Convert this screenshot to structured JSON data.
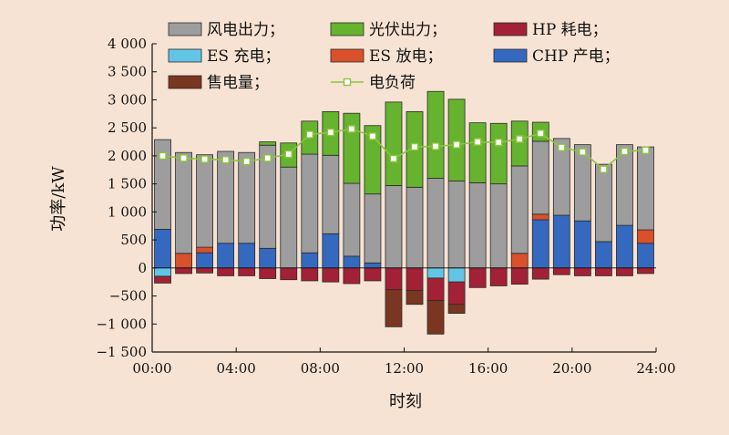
{
  "chart_data": {
    "type": "bar",
    "xlabel": "时刻",
    "ylabel": "功率/kW",
    "ylim": [
      -1500,
      4000
    ],
    "xlim": [
      0,
      24
    ],
    "yticks": [
      {
        "value": -1500,
        "label": "−1 500"
      },
      {
        "value": -1000,
        "label": "−1 000"
      },
      {
        "value": -500,
        "label": "−500"
      },
      {
        "value": 0,
        "label": "0"
      },
      {
        "value": 500,
        "label": "500"
      },
      {
        "value": 1000,
        "label": "1 000"
      },
      {
        "value": 1500,
        "label": "1 500"
      },
      {
        "value": 2000,
        "label": "2 000"
      },
      {
        "value": 2500,
        "label": "2 500"
      },
      {
        "value": 3000,
        "label": "3 000"
      },
      {
        "value": 3500,
        "label": "3 500"
      },
      {
        "value": 4000,
        "label": "4 000"
      }
    ],
    "xticks": [
      {
        "value": 0,
        "label": "00:00"
      },
      {
        "value": 4,
        "label": "04:00"
      },
      {
        "value": 8,
        "label": "08:00"
      },
      {
        "value": 12,
        "label": "12:00"
      },
      {
        "value": 16,
        "label": "16:00"
      },
      {
        "value": 20,
        "label": "20:00"
      },
      {
        "value": 24,
        "label": "24:00"
      }
    ],
    "grid": false,
    "legend_position": "top",
    "hours": [
      1,
      2,
      3,
      4,
      5,
      6,
      7,
      8,
      9,
      10,
      11,
      12,
      13,
      14,
      15,
      16,
      17,
      18,
      19,
      20,
      21,
      22,
      23,
      24
    ],
    "series": [
      {
        "name": "风电出力；",
        "kind": "bar",
        "color": "#9d9d9d",
        "values": [
          1600,
          1800,
          1650,
          1640,
          1620,
          1840,
          1800,
          1760,
          1400,
          1300,
          1230,
          1470,
          1440,
          1600,
          1550,
          1520,
          1500,
          1560,
          1300,
          1370,
          1360,
          1380,
          1440,
          1480
        ]
      },
      {
        "name": "光伏出力；",
        "kind": "bar",
        "color": "#65b32e",
        "values": [
          0,
          0,
          0,
          0,
          0,
          60,
          430,
          590,
          780,
          1250,
          1220,
          1490,
          1350,
          1550,
          1460,
          1070,
          1080,
          800,
          340,
          0,
          0,
          0,
          0,
          0
        ]
      },
      {
        "name": "HP 耗电；",
        "kind": "bar",
        "color": "#a32136",
        "values": [
          -120,
          -100,
          -90,
          -140,
          -140,
          -190,
          -210,
          -230,
          -250,
          -280,
          -230,
          -390,
          -400,
          -400,
          -400,
          -350,
          -320,
          -290,
          -200,
          -120,
          -140,
          -140,
          -140,
          -100
        ]
      },
      {
        "name": "ES 充电；",
        "kind": "bar",
        "color": "#63c5e5",
        "values": [
          -150,
          0,
          0,
          0,
          0,
          0,
          0,
          0,
          0,
          0,
          0,
          0,
          0,
          -180,
          -250,
          0,
          0,
          0,
          0,
          0,
          0,
          0,
          0,
          0
        ]
      },
      {
        "name": "ES 放电；",
        "kind": "bar",
        "color": "#d8512a",
        "values": [
          0,
          260,
          100,
          0,
          0,
          0,
          0,
          0,
          0,
          0,
          0,
          0,
          0,
          0,
          0,
          0,
          0,
          260,
          100,
          0,
          0,
          0,
          0,
          240
        ]
      },
      {
        "name": "CHP 产电；",
        "kind": "bar",
        "color": "#3469bf",
        "values": [
          690,
          0,
          270,
          440,
          440,
          350,
          0,
          270,
          610,
          210,
          90,
          0,
          0,
          0,
          0,
          0,
          0,
          0,
          860,
          940,
          840,
          470,
          760,
          440
        ]
      },
      {
        "name": "售电量；",
        "kind": "bar",
        "color": "#7a3621",
        "values": [
          0,
          0,
          0,
          0,
          0,
          0,
          0,
          0,
          0,
          0,
          0,
          -660,
          -250,
          -600,
          -160,
          0,
          0,
          0,
          0,
          0,
          0,
          0,
          0,
          0
        ]
      },
      {
        "name": "电负荷",
        "kind": "line",
        "color": "#8bc53f",
        "values": [
          2000,
          1960,
          1940,
          1930,
          1900,
          1960,
          2030,
          2380,
          2420,
          2480,
          2350,
          1950,
          2160,
          2170,
          2200,
          2250,
          2240,
          2300,
          2400,
          2150,
          2070,
          1760,
          2080,
          2100
        ]
      }
    ]
  }
}
